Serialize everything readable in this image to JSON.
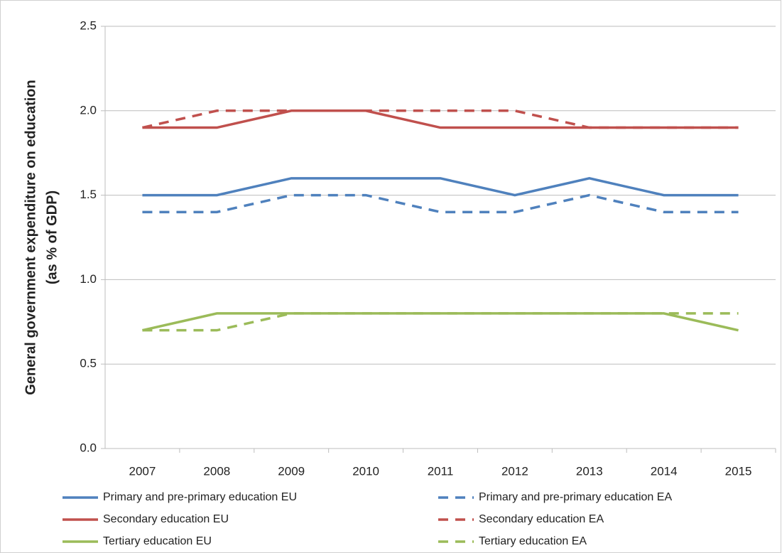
{
  "chart_data": {
    "type": "line",
    "ylabel": [
      "General government expenditure on education",
      "(as % of GDP)"
    ],
    "categories": [
      "2007",
      "2008",
      "2009",
      "2010",
      "2011",
      "2012",
      "2013",
      "2014",
      "2015"
    ],
    "series": [
      {
        "name": "Primary and pre-primary education EU",
        "color": "#4f81bd",
        "dash": false,
        "values": [
          1.5,
          1.5,
          1.6,
          1.6,
          1.6,
          1.5,
          1.6,
          1.5,
          1.5
        ]
      },
      {
        "name": "Primary and pre-primary education EA",
        "color": "#4f81bd",
        "dash": true,
        "values": [
          1.4,
          1.4,
          1.5,
          1.5,
          1.4,
          1.4,
          1.5,
          1.4,
          1.4
        ]
      },
      {
        "name": "Secondary education EU",
        "color": "#c0504d",
        "dash": false,
        "values": [
          1.9,
          1.9,
          2.0,
          2.0,
          1.9,
          1.9,
          1.9,
          1.9,
          1.9
        ]
      },
      {
        "name": "Secondary education EA",
        "color": "#c0504d",
        "dash": true,
        "values": [
          1.9,
          2.0,
          2.0,
          2.0,
          2.0,
          2.0,
          1.9,
          1.9,
          1.9
        ]
      },
      {
        "name": "Tertiary education EU",
        "color": "#9bbb59",
        "dash": false,
        "values": [
          0.7,
          0.8,
          0.8,
          0.8,
          0.8,
          0.8,
          0.8,
          0.8,
          0.7
        ]
      },
      {
        "name": "Tertiary education EA",
        "color": "#9bbb59",
        "dash": true,
        "values": [
          0.7,
          0.7,
          0.8,
          0.8,
          0.8,
          0.8,
          0.8,
          0.8,
          0.8
        ]
      }
    ],
    "ylim": [
      0,
      2.5
    ],
    "yticks": [
      {
        "value": 0,
        "label": "0.0"
      },
      0.5,
      {
        "value": 1,
        "label": "1.0"
      },
      1.5,
      {
        "value": 2,
        "label": "2.0"
      },
      2.5
    ],
    "grid": true
  }
}
